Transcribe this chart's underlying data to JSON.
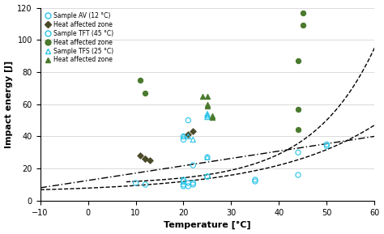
{
  "xlabel": "Temperature [°C]",
  "ylabel": "Impact energy [J]",
  "xlim": [
    -10,
    60
  ],
  "ylim": [
    0,
    120
  ],
  "xticks": [
    -10,
    0,
    10,
    20,
    30,
    40,
    50,
    60
  ],
  "yticks": [
    0,
    20,
    40,
    60,
    80,
    100,
    120
  ],
  "sampleAV_x": [
    10,
    12,
    20,
    20,
    21,
    22,
    25,
    35,
    35,
    44,
    44,
    50,
    50
  ],
  "sampleAV_y": [
    11,
    10,
    40,
    38,
    50,
    22,
    15,
    13,
    12,
    16,
    30,
    35,
    34
  ],
  "hazAV_x": [
    11,
    12,
    12,
    13,
    21,
    22
  ],
  "hazAV_y": [
    28,
    26,
    26,
    25,
    41,
    43
  ],
  "sampleTFT_x": [
    20,
    20,
    20,
    20,
    21,
    21,
    22,
    22,
    25,
    25
  ],
  "sampleTFT_y": [
    13,
    12,
    10,
    9,
    11,
    9,
    10,
    11,
    27,
    15
  ],
  "hazTFT_x": [
    11,
    12,
    44,
    44,
    44,
    45,
    45
  ],
  "hazTFT_y": [
    75,
    67,
    87,
    57,
    44,
    109,
    117
  ],
  "sampleTFS_x": [
    20,
    21,
    22,
    25,
    25,
    25,
    25
  ],
  "sampleTFS_y": [
    40,
    40,
    38,
    54,
    53,
    52,
    27
  ],
  "hazTFS_x": [
    24,
    25,
    25,
    25,
    26,
    26
  ],
  "hazTFS_y": [
    65,
    65,
    60,
    59,
    53,
    52
  ],
  "color_cyan": "#29C4E8",
  "color_dark_olive": "#4a4a2a",
  "color_green": "#4a7a2e"
}
